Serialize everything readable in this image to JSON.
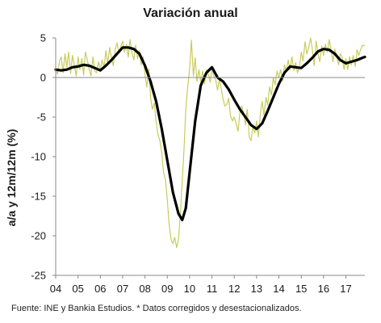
{
  "chart_data": {
    "type": "line",
    "title": "Variación anual",
    "xlabel": "",
    "ylabel": "a/a y 12m/12m (%)",
    "ylim": [
      -25,
      5
    ],
    "yticks": [
      5,
      0,
      -5,
      -10,
      -15,
      -20,
      -25
    ],
    "xlim": [
      2004,
      2017.85
    ],
    "xticks": [
      "04",
      "05",
      "06",
      "07",
      "08",
      "09",
      "10",
      "11",
      "12",
      "13",
      "14",
      "15",
      "16",
      "17"
    ],
    "grid": false,
    "series": [
      {
        "label": "a/a",
        "color": "#c8cc5a",
        "line_width": 1.2,
        "points": [
          [
            2004.0,
            1.2
          ],
          [
            2004.08,
            0.4
          ],
          [
            2004.17,
            2.1
          ],
          [
            2004.25,
            2.6
          ],
          [
            2004.33,
            0.6
          ],
          [
            2004.42,
            3.0
          ],
          [
            2004.5,
            1.3
          ],
          [
            2004.58,
            3.2
          ],
          [
            2004.67,
            0.5
          ],
          [
            2004.75,
            2.8
          ],
          [
            2004.83,
            1.6
          ],
          [
            2004.92,
            0.2
          ],
          [
            2005.0,
            2.6
          ],
          [
            2005.08,
            1.0
          ],
          [
            2005.17,
            2.4
          ],
          [
            2005.25,
            0.3
          ],
          [
            2005.33,
            3.2
          ],
          [
            2005.42,
            2.2
          ],
          [
            2005.5,
            1.0
          ],
          [
            2005.58,
            0.2
          ],
          [
            2005.67,
            2.6
          ],
          [
            2005.75,
            0.8
          ],
          [
            2005.83,
            0.6
          ],
          [
            2005.92,
            2.0
          ],
          [
            2006.0,
            0.9
          ],
          [
            2006.08,
            2.2
          ],
          [
            2006.17,
            1.3
          ],
          [
            2006.25,
            3.4
          ],
          [
            2006.33,
            1.8
          ],
          [
            2006.42,
            3.8
          ],
          [
            2006.5,
            2.5
          ],
          [
            2006.58,
            1.5
          ],
          [
            2006.67,
            3.5
          ],
          [
            2006.75,
            4.4
          ],
          [
            2006.83,
            3.1
          ],
          [
            2006.92,
            3.9
          ],
          [
            2007.0,
            4.6
          ],
          [
            2007.08,
            3.2
          ],
          [
            2007.17,
            4.2
          ],
          [
            2007.25,
            2.6
          ],
          [
            2007.33,
            4.8
          ],
          [
            2007.42,
            3.1
          ],
          [
            2007.5,
            2.2
          ],
          [
            2007.58,
            4.1
          ],
          [
            2007.67,
            2.4
          ],
          [
            2007.75,
            3.4
          ],
          [
            2007.83,
            1.6
          ],
          [
            2007.92,
            2.6
          ],
          [
            2008.0,
            0.4
          ],
          [
            2008.08,
            -1.2
          ],
          [
            2008.17,
            1.1
          ],
          [
            2008.25,
            -2.5
          ],
          [
            2008.33,
            -4.0
          ],
          [
            2008.42,
            -3.2
          ],
          [
            2008.5,
            -5.6
          ],
          [
            2008.58,
            -7.2
          ],
          [
            2008.67,
            -8.0
          ],
          [
            2008.75,
            -9.5
          ],
          [
            2008.83,
            -12.0
          ],
          [
            2008.92,
            -13.0
          ],
          [
            2009.0,
            -15.5
          ],
          [
            2009.08,
            -18.5
          ],
          [
            2009.17,
            -20.5
          ],
          [
            2009.25,
            -21.0
          ],
          [
            2009.33,
            -20.2
          ],
          [
            2009.42,
            -21.5
          ],
          [
            2009.5,
            -20.5
          ],
          [
            2009.58,
            -17.5
          ],
          [
            2009.67,
            -13.0
          ],
          [
            2009.75,
            -9.0
          ],
          [
            2009.83,
            -4.0
          ],
          [
            2009.92,
            -1.0
          ],
          [
            2010.0,
            1.0
          ],
          [
            2010.08,
            4.7
          ],
          [
            2010.17,
            0.2
          ],
          [
            2010.25,
            2.5
          ],
          [
            2010.33,
            -0.5
          ],
          [
            2010.42,
            1.0
          ],
          [
            2010.5,
            -0.6
          ],
          [
            2010.58,
            0.8
          ],
          [
            2010.67,
            -0.8
          ],
          [
            2010.75,
            1.0
          ],
          [
            2010.83,
            0.5
          ],
          [
            2010.92,
            -0.6
          ],
          [
            2011.0,
            1.2
          ],
          [
            2011.08,
            0.2
          ],
          [
            2011.17,
            -0.3
          ],
          [
            2011.25,
            -1.6
          ],
          [
            2011.33,
            -0.2
          ],
          [
            2011.42,
            -1.5
          ],
          [
            2011.5,
            -2.8
          ],
          [
            2011.58,
            -3.6
          ],
          [
            2011.67,
            -3.4
          ],
          [
            2011.75,
            -2.6
          ],
          [
            2011.83,
            -4.8
          ],
          [
            2011.92,
            -5.5
          ],
          [
            2012.0,
            -5.0
          ],
          [
            2012.08,
            -5.8
          ],
          [
            2012.17,
            -6.8
          ],
          [
            2012.25,
            -4.5
          ],
          [
            2012.33,
            -3.6
          ],
          [
            2012.42,
            -4.5
          ],
          [
            2012.5,
            -6.0
          ],
          [
            2012.58,
            -4.0
          ],
          [
            2012.67,
            -7.5
          ],
          [
            2012.75,
            -8.0
          ],
          [
            2012.83,
            -6.2
          ],
          [
            2012.92,
            -7.0
          ],
          [
            2013.0,
            -5.5
          ],
          [
            2013.08,
            -7.5
          ],
          [
            2013.17,
            -4.5
          ],
          [
            2013.25,
            -3.0
          ],
          [
            2013.33,
            -4.8
          ],
          [
            2013.42,
            -2.5
          ],
          [
            2013.5,
            -3.5
          ],
          [
            2013.58,
            -1.2
          ],
          [
            2013.67,
            -2.2
          ],
          [
            2013.75,
            0.0
          ],
          [
            2013.83,
            -0.9
          ],
          [
            2013.92,
            0.8
          ],
          [
            2014.0,
            0.0
          ],
          [
            2014.08,
            1.0
          ],
          [
            2014.17,
            -0.4
          ],
          [
            2014.25,
            1.6
          ],
          [
            2014.33,
            0.9
          ],
          [
            2014.42,
            2.2
          ],
          [
            2014.5,
            1.0
          ],
          [
            2014.58,
            2.6
          ],
          [
            2014.67,
            0.9
          ],
          [
            2014.75,
            1.9
          ],
          [
            2014.83,
            0.6
          ],
          [
            2014.92,
            1.4
          ],
          [
            2015.0,
            3.2
          ],
          [
            2015.08,
            2.1
          ],
          [
            2015.17,
            4.5
          ],
          [
            2015.25,
            3.0
          ],
          [
            2015.33,
            3.7
          ],
          [
            2015.42,
            5.0
          ],
          [
            2015.5,
            3.5
          ],
          [
            2015.58,
            1.5
          ],
          [
            2015.67,
            4.6
          ],
          [
            2015.75,
            3.0
          ],
          [
            2015.83,
            2.0
          ],
          [
            2015.92,
            4.0
          ],
          [
            2016.0,
            2.8
          ],
          [
            2016.08,
            4.2
          ],
          [
            2016.17,
            3.2
          ],
          [
            2016.25,
            4.8
          ],
          [
            2016.33,
            3.6
          ],
          [
            2016.42,
            2.0
          ],
          [
            2016.5,
            3.6
          ],
          [
            2016.58,
            2.8
          ],
          [
            2016.67,
            1.6
          ],
          [
            2016.75,
            3.0
          ],
          [
            2016.83,
            2.6
          ],
          [
            2016.92,
            1.0
          ],
          [
            2017.0,
            2.4
          ],
          [
            2017.08,
            1.0
          ],
          [
            2017.17,
            2.6
          ],
          [
            2017.25,
            1.6
          ],
          [
            2017.33,
            2.8
          ],
          [
            2017.42,
            1.4
          ],
          [
            2017.5,
            3.5
          ],
          [
            2017.58,
            2.8
          ],
          [
            2017.67,
            3.6
          ],
          [
            2017.75,
            4.1
          ],
          [
            2017.83,
            4.0
          ]
        ]
      },
      {
        "label": "12m/12m",
        "color": "#000000",
        "line_width": 3.2,
        "points": [
          [
            2004.0,
            1.0
          ],
          [
            2004.25,
            0.9
          ],
          [
            2004.5,
            1.0
          ],
          [
            2004.75,
            1.3
          ],
          [
            2005.0,
            1.4
          ],
          [
            2005.25,
            1.6
          ],
          [
            2005.5,
            1.5
          ],
          [
            2005.75,
            1.2
          ],
          [
            2006.0,
            0.9
          ],
          [
            2006.25,
            1.5
          ],
          [
            2006.5,
            2.2
          ],
          [
            2006.75,
            3.0
          ],
          [
            2007.0,
            3.8
          ],
          [
            2007.25,
            3.8
          ],
          [
            2007.5,
            3.6
          ],
          [
            2007.75,
            3.0
          ],
          [
            2008.0,
            1.5
          ],
          [
            2008.25,
            -0.5
          ],
          [
            2008.5,
            -3.0
          ],
          [
            2008.75,
            -6.5
          ],
          [
            2009.0,
            -10.5
          ],
          [
            2009.25,
            -14.5
          ],
          [
            2009.5,
            -17.2
          ],
          [
            2009.67,
            -18.0
          ],
          [
            2009.83,
            -16.5
          ],
          [
            2010.0,
            -12.0
          ],
          [
            2010.25,
            -5.5
          ],
          [
            2010.5,
            -1.0
          ],
          [
            2010.75,
            0.6
          ],
          [
            2011.0,
            1.3
          ],
          [
            2011.25,
            0.0
          ],
          [
            2011.5,
            -0.5
          ],
          [
            2011.75,
            -1.5
          ],
          [
            2012.0,
            -2.8
          ],
          [
            2012.25,
            -4.0
          ],
          [
            2012.5,
            -5.0
          ],
          [
            2012.75,
            -6.0
          ],
          [
            2013.0,
            -6.5
          ],
          [
            2013.25,
            -5.8
          ],
          [
            2013.5,
            -4.2
          ],
          [
            2013.75,
            -2.5
          ],
          [
            2014.0,
            -0.8
          ],
          [
            2014.25,
            0.6
          ],
          [
            2014.5,
            1.4
          ],
          [
            2014.75,
            1.3
          ],
          [
            2015.0,
            1.2
          ],
          [
            2015.25,
            1.8
          ],
          [
            2015.5,
            2.5
          ],
          [
            2015.75,
            3.3
          ],
          [
            2016.0,
            3.6
          ],
          [
            2016.25,
            3.5
          ],
          [
            2016.5,
            3.0
          ],
          [
            2016.75,
            2.2
          ],
          [
            2017.0,
            1.8
          ],
          [
            2017.25,
            2.0
          ],
          [
            2017.5,
            2.2
          ],
          [
            2017.75,
            2.5
          ],
          [
            2017.85,
            2.6
          ]
        ]
      }
    ]
  },
  "footer": {
    "source": "Fuente: INE y Bankia Estudios. * Datos corregidos y desestacionalizados."
  }
}
